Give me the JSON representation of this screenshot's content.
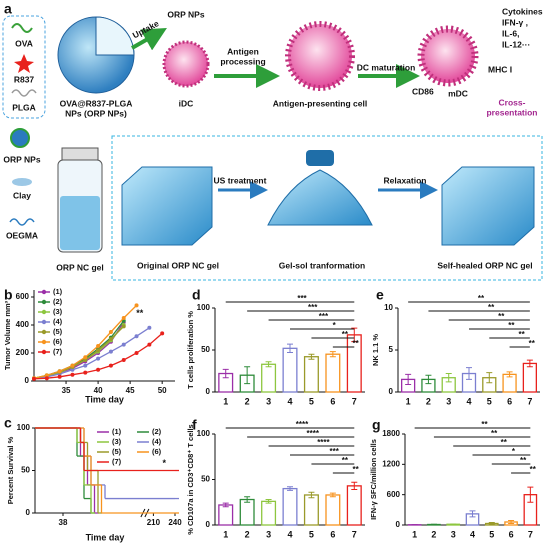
{
  "diagram": {
    "panel": "a",
    "materials": [
      "OVA",
      "R837",
      "PLGA"
    ],
    "nanoparticle": [
      "OVA@R837-PLGA",
      "NPs (ORP NPs)"
    ],
    "uptake": "Uptake",
    "orp_nps": "ORP NPs",
    "idc": "iDC",
    "antigen_processing": [
      "Antigen",
      "processing"
    ],
    "apc": "Antigen-presenting cell",
    "dc_maturation": "DC maturation",
    "cytokines": [
      "Cytokines",
      "IFN-γ ,",
      "IL-6,",
      "IL-12···"
    ],
    "mhc": "MHC I",
    "cd86": "CD86",
    "mdc": "mDC",
    "cross_presentation": [
      "Cross-",
      "presentation"
    ],
    "gel_components": [
      "ORP NPs",
      "Clay",
      "OEGMA"
    ],
    "gel": "ORP NC gel",
    "us_treatment": "US treatment",
    "relaxation": "Relaxation",
    "gel_states": [
      "Original ORP NC gel",
      "Gel-sol tranformation",
      "Self-healed ORP NC gel"
    ]
  },
  "chart_data": [
    {
      "type": "line",
      "panel": "b",
      "ylabel": "Tumor Volume mm³",
      "xlabel": "Time day",
      "xlim": [
        30,
        52
      ],
      "xticks": [
        35,
        40,
        45,
        50
      ],
      "ylim": [
        0,
        650
      ],
      "yticks": [
        0,
        200,
        400,
        600
      ],
      "legend": "upper left",
      "x": [
        30,
        32,
        34,
        36,
        38,
        40,
        42,
        44,
        46,
        48,
        50
      ],
      "series": [
        {
          "name": "(1)",
          "color": "#9b2fa8",
          "values": [
            20,
            35,
            60,
            90,
            140,
            200,
            280,
            420,
            null,
            null,
            null
          ]
        },
        {
          "name": "(2)",
          "color": "#2e8b3a",
          "values": [
            20,
            40,
            70,
            110,
            160,
            230,
            310,
            430,
            null,
            null,
            null
          ]
        },
        {
          "name": "(3)",
          "color": "#8dc63f",
          "values": [
            20,
            35,
            60,
            100,
            150,
            210,
            290,
            400,
            null,
            null,
            null
          ]
        },
        {
          "name": "(4)",
          "color": "#7b7fd0",
          "values": [
            20,
            30,
            50,
            80,
            110,
            160,
            210,
            260,
            320,
            380,
            null
          ]
        },
        {
          "name": "(5)",
          "color": "#9a9a2a",
          "values": [
            20,
            40,
            65,
            100,
            150,
            220,
            300,
            390,
            null,
            null,
            null
          ]
        },
        {
          "name": "(6)",
          "color": "#f7931e",
          "values": [
            20,
            40,
            70,
            110,
            170,
            250,
            350,
            450,
            540,
            null,
            null
          ]
        },
        {
          "name": "(7)",
          "color": "#e8211c",
          "values": [
            15,
            20,
            30,
            45,
            60,
            80,
            110,
            150,
            200,
            260,
            340
          ]
        }
      ],
      "annotations": [
        {
          "text": "**",
          "x": 46.5,
          "y": 480
        }
      ]
    },
    {
      "type": "survival",
      "panel": "c",
      "ylabel": "Percent Survival %",
      "xlabel": "Time day",
      "xlim": [
        30,
        240
      ],
      "axis_break": [
        60,
        205
      ],
      "xticks": [
        38,
        210,
        240
      ],
      "ylim": [
        0,
        100
      ],
      "yticks": [
        0,
        50,
        100
      ],
      "legend": "upper right",
      "series": [
        {
          "name": "(1)",
          "color": "#9b2fa8",
          "x": [
            30,
            43,
            45,
            47
          ],
          "values": [
            100,
            67,
            33,
            0
          ]
        },
        {
          "name": "(2)",
          "color": "#2e8b3a",
          "x": [
            30,
            42,
            44,
            46
          ],
          "values": [
            100,
            67,
            17,
            0
          ]
        },
        {
          "name": "(3)",
          "color": "#8dc63f",
          "x": [
            30,
            42,
            44,
            46
          ],
          "values": [
            100,
            83,
            33,
            0
          ]
        },
        {
          "name": "(4)",
          "color": "#7b7fd0",
          "x": [
            30,
            44,
            46,
            50,
            240
          ],
          "values": [
            100,
            67,
            33,
            17,
            17
          ]
        },
        {
          "name": "(5)",
          "color": "#9a9a2a",
          "x": [
            30,
            43,
            45,
            48
          ],
          "values": [
            100,
            83,
            50,
            0
          ]
        },
        {
          "name": "(6)",
          "color": "#f7931e",
          "x": [
            30,
            44,
            46,
            49,
            240
          ],
          "values": [
            100,
            67,
            33,
            0,
            0
          ]
        },
        {
          "name": "(7)",
          "color": "#e8211c",
          "x": [
            30,
            43,
            44,
            240
          ],
          "values": [
            100,
            83,
            50,
            50
          ]
        }
      ],
      "annotations": [
        {
          "text": "*",
          "x": 225,
          "y": 58
        }
      ]
    },
    {
      "type": "bar",
      "panel": "d",
      "ylabel": "T cells proliferation %",
      "categories": [
        "1",
        "2",
        "3",
        "4",
        "5",
        "6",
        "7"
      ],
      "colors": [
        "#9b2fa8",
        "#2e8b3a",
        "#8dc63f",
        "#7b7fd0",
        "#9a9a2a",
        "#f7931e",
        "#e8211c"
      ],
      "values": [
        22,
        20,
        33,
        52,
        42,
        45,
        68
      ],
      "errors": [
        5,
        10,
        3,
        5,
        3,
        3,
        8
      ],
      "ylim": [
        0,
        100
      ],
      "yticks": [
        0,
        50,
        100
      ],
      "significance": [
        "***",
        "***",
        "***",
        "*",
        "**",
        "**"
      ]
    },
    {
      "type": "bar",
      "panel": "e",
      "ylabel": "NK 1.1 %",
      "categories": [
        "1",
        "2",
        "3",
        "4",
        "5",
        "6",
        "7"
      ],
      "colors": [
        "#9b2fa8",
        "#2e8b3a",
        "#8dc63f",
        "#7b7fd0",
        "#9a9a2a",
        "#f7931e",
        "#e8211c"
      ],
      "values": [
        1.5,
        1.5,
        1.7,
        2.2,
        1.7,
        2.1,
        3.4
      ],
      "errors": [
        0.6,
        0.5,
        0.5,
        0.7,
        0.6,
        0.3,
        0.4
      ],
      "ylim": [
        0,
        10
      ],
      "yticks": [
        0,
        5,
        10
      ],
      "significance": [
        "**",
        "**",
        "**",
        "**",
        "**",
        "**"
      ]
    },
    {
      "type": "bar",
      "panel": "f",
      "ylabel": "% CD107a in CD3⁺CD8⁺ T cells",
      "categories": [
        "1",
        "2",
        "3",
        "4",
        "5",
        "6",
        "7"
      ],
      "colors": [
        "#9b2fa8",
        "#2e8b3a",
        "#8dc63f",
        "#7b7fd0",
        "#9a9a2a",
        "#f7931e",
        "#e8211c"
      ],
      "values": [
        22,
        28,
        26,
        40,
        33,
        33,
        43
      ],
      "errors": [
        2,
        3,
        2,
        2,
        3,
        2,
        4
      ],
      "ylim": [
        0,
        100
      ],
      "yticks": [
        0,
        50,
        100
      ],
      "significance": [
        "****",
        "****",
        "****",
        "***",
        "**",
        "**"
      ]
    },
    {
      "type": "bar",
      "panel": "g",
      "ylabel": "IFN-γ SFC/million cells",
      "categories": [
        "1",
        "2",
        "3",
        "4",
        "5",
        "6",
        "7"
      ],
      "colors": [
        "#9b2fa8",
        "#2e8b3a",
        "#8dc63f",
        "#7b7fd0",
        "#9a9a2a",
        "#f7931e",
        "#e8211c"
      ],
      "values": [
        5,
        10,
        15,
        220,
        30,
        60,
        600
      ],
      "errors": [
        3,
        5,
        5,
        60,
        20,
        30,
        150
      ],
      "ylim": [
        0,
        1800
      ],
      "yticks": [
        0,
        600,
        1200,
        1800
      ],
      "significance": [
        "**",
        "**",
        "**",
        "*",
        "**",
        "**"
      ]
    }
  ]
}
